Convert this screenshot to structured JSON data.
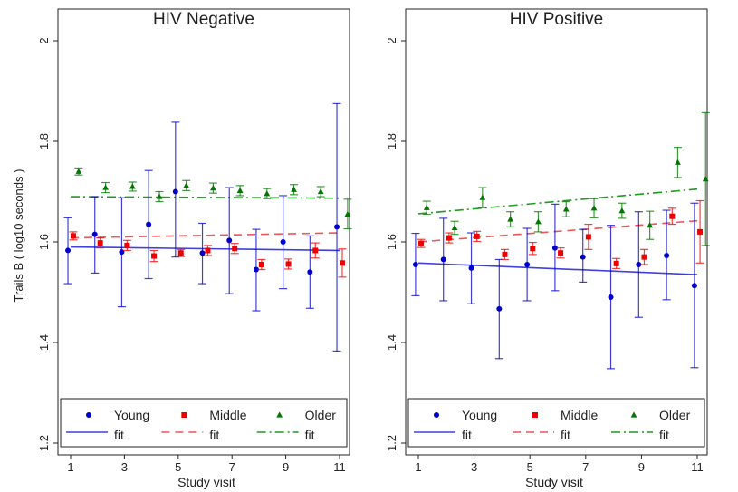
{
  "figure": {
    "ylabel": "Trails B ( log10 seconds )",
    "xlabel": "Study visit"
  },
  "chart_data": [
    {
      "type": "scatter",
      "title": "HIV Negative",
      "xlabel": "Study visit",
      "ylabel": "Trails B ( log10 seconds )",
      "xlim": [
        0.5,
        11.5
      ],
      "ylim": [
        1.2,
        2.07
      ],
      "xticks": [
        1,
        3,
        5,
        7,
        9,
        11
      ],
      "yticks": [
        1.2,
        1.4,
        1.6,
        1.8,
        2
      ],
      "grid": false,
      "legend_position": "bottom",
      "series": [
        {
          "name": "Young",
          "color": "#0000cc",
          "marker": "circle",
          "x": [
            0.9,
            1.9,
            2.9,
            3.9,
            4.9,
            5.9,
            6.9,
            7.9,
            8.9,
            9.9,
            10.9
          ],
          "y": [
            1.583,
            1.615,
            1.58,
            1.635,
            1.7,
            1.578,
            1.603,
            1.545,
            1.6,
            1.54,
            1.63
          ],
          "err_low": [
            1.517,
            1.538,
            1.471,
            1.527,
            1.57,
            1.517,
            1.497,
            1.463,
            1.507,
            1.468,
            1.383
          ],
          "err_high": [
            1.648,
            1.69,
            1.688,
            1.742,
            1.838,
            1.637,
            1.708,
            1.625,
            1.692,
            1.612,
            1.875
          ]
        },
        {
          "name": "Middle",
          "color": "#ee0000",
          "marker": "square",
          "x": [
            1.1,
            2.1,
            3.1,
            4.1,
            5.1,
            6.1,
            7.1,
            8.1,
            9.1,
            10.1,
            11.1
          ],
          "y": [
            1.612,
            1.598,
            1.593,
            1.572,
            1.578,
            1.583,
            1.587,
            1.555,
            1.556,
            1.583,
            1.558
          ],
          "err_low": [
            1.604,
            1.588,
            1.583,
            1.561,
            1.571,
            1.573,
            1.577,
            1.545,
            1.546,
            1.568,
            1.53
          ],
          "err_high": [
            1.62,
            1.608,
            1.603,
            1.583,
            1.585,
            1.593,
            1.597,
            1.565,
            1.566,
            1.598,
            1.586
          ]
        },
        {
          "name": "Older",
          "color": "#007700",
          "marker": "triangle",
          "x": [
            1.3,
            2.3,
            3.3,
            4.3,
            5.3,
            6.3,
            7.3,
            8.3,
            9.3,
            10.3,
            11.3
          ],
          "y": [
            1.74,
            1.708,
            1.71,
            1.69,
            1.712,
            1.707,
            1.702,
            1.696,
            1.704,
            1.7,
            1.655
          ],
          "err_low": [
            1.733,
            1.698,
            1.701,
            1.68,
            1.702,
            1.697,
            1.692,
            1.686,
            1.694,
            1.69,
            1.626
          ],
          "err_high": [
            1.747,
            1.718,
            1.719,
            1.7,
            1.722,
            1.717,
            1.712,
            1.706,
            1.714,
            1.71,
            1.685
          ]
        }
      ],
      "fits": [
        {
          "name": "fit",
          "group": "Young",
          "color": "#4040dd",
          "dash": "solid",
          "x": [
            1,
            11
          ],
          "y": [
            1.59,
            1.583
          ]
        },
        {
          "name": "fit",
          "group": "Middle",
          "color": "#ee5555",
          "dash": "dash",
          "x": [
            1,
            11
          ],
          "y": [
            1.608,
            1.618
          ]
        },
        {
          "name": "fit",
          "group": "Older",
          "color": "#229922",
          "dash": "dashdot",
          "x": [
            1,
            11
          ],
          "y": [
            1.69,
            1.687
          ]
        }
      ]
    },
    {
      "type": "scatter",
      "title": "HIV Positive",
      "xlabel": "Study visit",
      "ylabel": "",
      "xlim": [
        0.5,
        11.5
      ],
      "ylim": [
        1.2,
        2.07
      ],
      "xticks": [
        1,
        3,
        5,
        7,
        9,
        11
      ],
      "yticks": [
        1.2,
        1.4,
        1.6,
        1.8,
        2
      ],
      "grid": false,
      "legend_position": "bottom",
      "series": [
        {
          "name": "Young",
          "color": "#0000cc",
          "marker": "circle",
          "x": [
            0.9,
            1.9,
            2.9,
            3.9,
            4.9,
            5.9,
            6.9,
            7.9,
            8.9,
            9.9,
            10.9
          ],
          "y": [
            1.555,
            1.565,
            1.548,
            1.467,
            1.555,
            1.588,
            1.57,
            1.49,
            1.555,
            1.573,
            1.513
          ],
          "err_low": [
            1.493,
            1.483,
            1.477,
            1.368,
            1.483,
            1.503,
            1.52,
            1.348,
            1.45,
            1.485,
            1.35
          ],
          "err_high": [
            1.617,
            1.647,
            1.618,
            1.565,
            1.627,
            1.675,
            1.625,
            1.633,
            1.66,
            1.663,
            1.677
          ]
        },
        {
          "name": "Middle",
          "color": "#ee0000",
          "marker": "square",
          "x": [
            1.1,
            2.1,
            3.1,
            4.1,
            5.1,
            6.1,
            7.1,
            8.1,
            9.1,
            10.1,
            11.1
          ],
          "y": [
            1.597,
            1.608,
            1.611,
            1.575,
            1.587,
            1.578,
            1.61,
            1.557,
            1.57,
            1.651,
            1.62
          ],
          "err_low": [
            1.589,
            1.598,
            1.601,
            1.565,
            1.575,
            1.568,
            1.585,
            1.547,
            1.555,
            1.635,
            1.558
          ],
          "err_high": [
            1.605,
            1.618,
            1.621,
            1.585,
            1.599,
            1.588,
            1.635,
            1.567,
            1.585,
            1.667,
            1.682
          ]
        },
        {
          "name": "Older",
          "color": "#007700",
          "marker": "triangle",
          "x": [
            1.3,
            2.3,
            3.3,
            4.3,
            5.3,
            6.3,
            7.3,
            8.3,
            9.3,
            10.3,
            11.3
          ],
          "y": [
            1.668,
            1.628,
            1.688,
            1.645,
            1.64,
            1.665,
            1.667,
            1.662,
            1.633,
            1.758,
            1.725
          ],
          "err_low": [
            1.655,
            1.615,
            1.668,
            1.63,
            1.62,
            1.65,
            1.648,
            1.647,
            1.605,
            1.728,
            1.593
          ],
          "err_high": [
            1.681,
            1.641,
            1.708,
            1.66,
            1.66,
            1.68,
            1.686,
            1.677,
            1.661,
            1.788,
            1.857
          ]
        }
      ],
      "fits": [
        {
          "name": "fit",
          "group": "Young",
          "color": "#4040dd",
          "dash": "solid",
          "x": [
            1,
            11
          ],
          "y": [
            1.558,
            1.535
          ]
        },
        {
          "name": "fit",
          "group": "Middle",
          "color": "#ee5555",
          "dash": "dash",
          "x": [
            1,
            11
          ],
          "y": [
            1.6,
            1.642
          ]
        },
        {
          "name": "fit",
          "group": "Older",
          "color": "#229922",
          "dash": "dashdot",
          "x": [
            1,
            11
          ],
          "y": [
            1.656,
            1.705
          ]
        }
      ]
    }
  ],
  "legend": {
    "rows": [
      [
        {
          "label": "Young",
          "series": "Young"
        },
        {
          "label": "Middle",
          "series": "Middle"
        },
        {
          "label": "Older",
          "series": "Older"
        }
      ],
      [
        {
          "label": "fit",
          "series": "Young"
        },
        {
          "label": "fit",
          "series": "Middle"
        },
        {
          "label": "fit",
          "series": "Older"
        }
      ]
    ]
  }
}
